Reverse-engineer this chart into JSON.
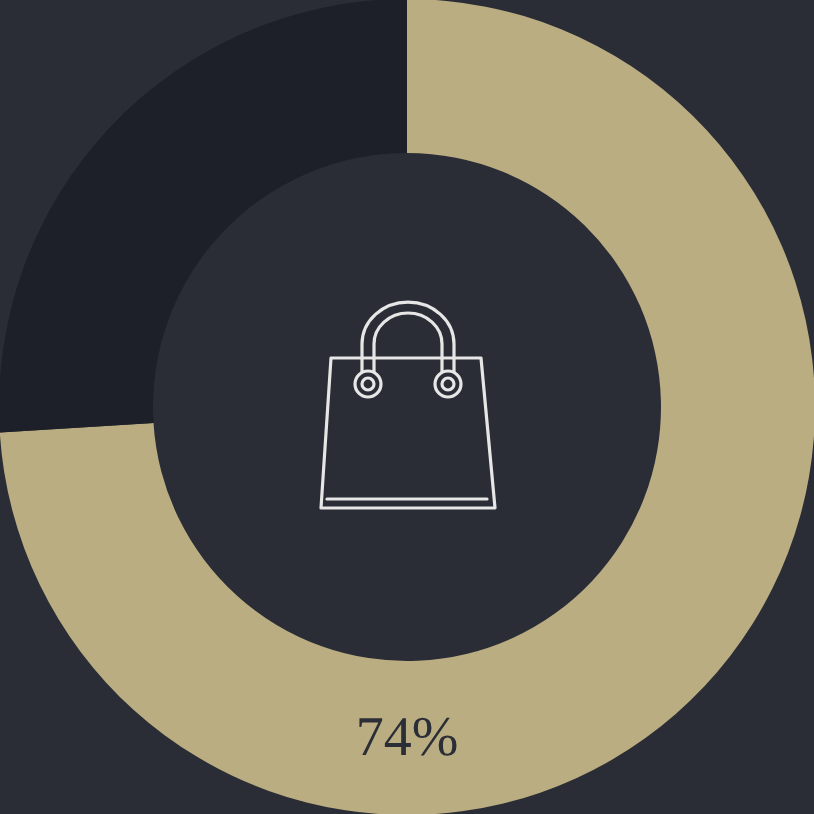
{
  "chart_data": {
    "type": "donut",
    "categories": [
      null,
      null
    ],
    "values": [
      74,
      26
    ],
    "colors": [
      "#bbad82",
      "#1d2028"
    ],
    "value_labels": [
      "74%",
      null
    ]
  }
}
